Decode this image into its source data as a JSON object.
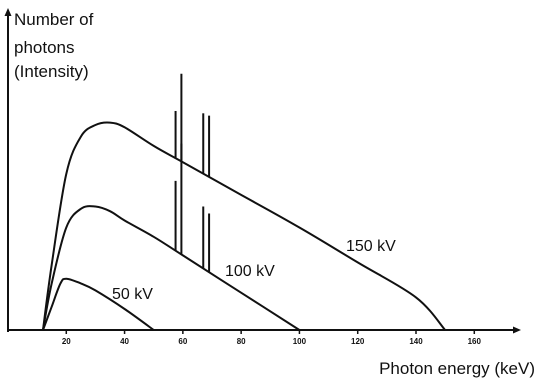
{
  "chart_data": {
    "type": "line",
    "ylabel_lines": [
      "Number of",
      "photons",
      "(Intensity)"
    ],
    "xlabel": "Photon energy (keV)",
    "xlim": [
      0,
      175
    ],
    "ylim": [
      0,
      100
    ],
    "x_ticks": [
      "20",
      "40",
      "60",
      "80",
      "100",
      "120",
      "140",
      "160"
    ],
    "x_tick_values": [
      20,
      40,
      60,
      80,
      100,
      120,
      140,
      160
    ],
    "grid": false,
    "series": [
      {
        "name": "150 kV",
        "points": [
          [
            12,
            0
          ],
          [
            15,
            28
          ],
          [
            20,
            67
          ],
          [
            25,
            83
          ],
          [
            30,
            88
          ],
          [
            35,
            89
          ],
          [
            40,
            87
          ],
          [
            50,
            79
          ],
          [
            60,
            72
          ],
          [
            80,
            58
          ],
          [
            100,
            44
          ],
          [
            120,
            29
          ],
          [
            140,
            14
          ],
          [
            150,
            0
          ]
        ],
        "spikes": [
          [
            57.5,
            94
          ],
          [
            59.5,
            110
          ],
          [
            67,
            93
          ],
          [
            69,
            92
          ]
        ]
      },
      {
        "name": "100 kV",
        "points": [
          [
            12,
            0
          ],
          [
            15,
            20
          ],
          [
            20,
            44
          ],
          [
            25,
            52
          ],
          [
            30,
            53
          ],
          [
            35,
            51
          ],
          [
            40,
            47
          ],
          [
            50,
            40
          ],
          [
            60,
            32
          ],
          [
            80,
            16
          ],
          [
            100,
            0
          ]
        ],
        "spikes": [
          [
            57.5,
            64
          ],
          [
            59.5,
            80
          ],
          [
            67,
            53
          ],
          [
            69,
            50
          ]
        ]
      },
      {
        "name": "50 kV",
        "points": [
          [
            12,
            0
          ],
          [
            15,
            10
          ],
          [
            18,
            20
          ],
          [
            20,
            22
          ],
          [
            25,
            20
          ],
          [
            30,
            17
          ],
          [
            40,
            9
          ],
          [
            50,
            0
          ]
        ],
        "spikes": []
      }
    ]
  }
}
